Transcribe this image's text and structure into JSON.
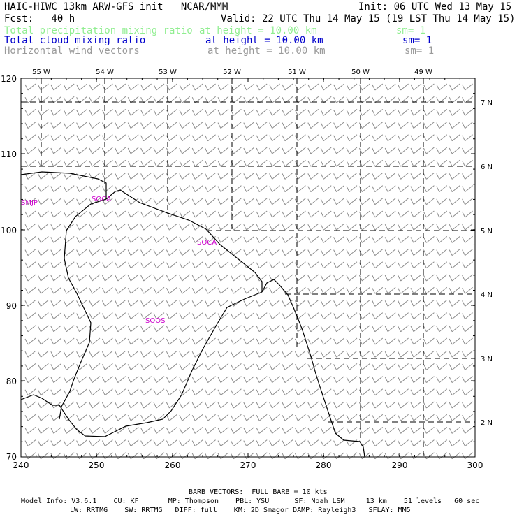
{
  "header": {
    "title": "HAIC-HIWC 13km ARW-GFS init   NCAR/MMM",
    "init": "Init: 06 UTC Wed 13 May 15",
    "fcst": "Fcst:   40 h",
    "valid": "Valid: 22 UTC Thu 14 May 15 (19 LST Thu 14 May 15)",
    "fields": [
      {
        "name": "Total precipitation mixing ratio",
        "height": "at height = 10.00 km",
        "sm": "sm= 1",
        "color": "#90ee90"
      },
      {
        "name": "Total cloud mixing ratio",
        "height": "at height = 10.00 km",
        "sm": "sm= 1",
        "color": "#0000cc"
      },
      {
        "name": "Horizontal wind vectors",
        "height": "at height = 10.00 km",
        "sm": "sm= 1",
        "color": "#9a9a9a"
      }
    ]
  },
  "map": {
    "x_ticks": [
      "240",
      "250",
      "260",
      "270",
      "280",
      "290",
      "300"
    ],
    "y_ticks": [
      "70",
      "80",
      "90",
      "100",
      "110",
      "120"
    ],
    "lon_labels": [
      "55 W",
      "54 W",
      "53 W",
      "52 W",
      "51 W",
      "50 W",
      "49 W"
    ],
    "lat_labels": [
      "7 N",
      "6 N",
      "5 N",
      "4 N",
      "3 N",
      "2 N"
    ],
    "stations": [
      {
        "id": "SMJP",
        "color": "#cc00cc"
      },
      {
        "id": "SOCA",
        "color": "#cc00cc"
      },
      {
        "id": "SOCA",
        "color": "#cc00cc"
      },
      {
        "id": "SOOS",
        "color": "#cc00cc"
      }
    ],
    "barb_color": "#8c8c8c"
  },
  "footer": {
    "barb": "BARB VECTORS:  FULL BARB = 10 kts",
    "line1": "Model Info: V3.6.1    CU: KF       MP: Thompson    PBL: YSU      SF: Noah LSM     13 km    51 levels   60 sec",
    "line2": "LW: RRTMG    SW: RRTMG   DIFF: full    KM: 2D Smagor DAMP: Rayleigh3   SFLAY: MM5"
  }
}
